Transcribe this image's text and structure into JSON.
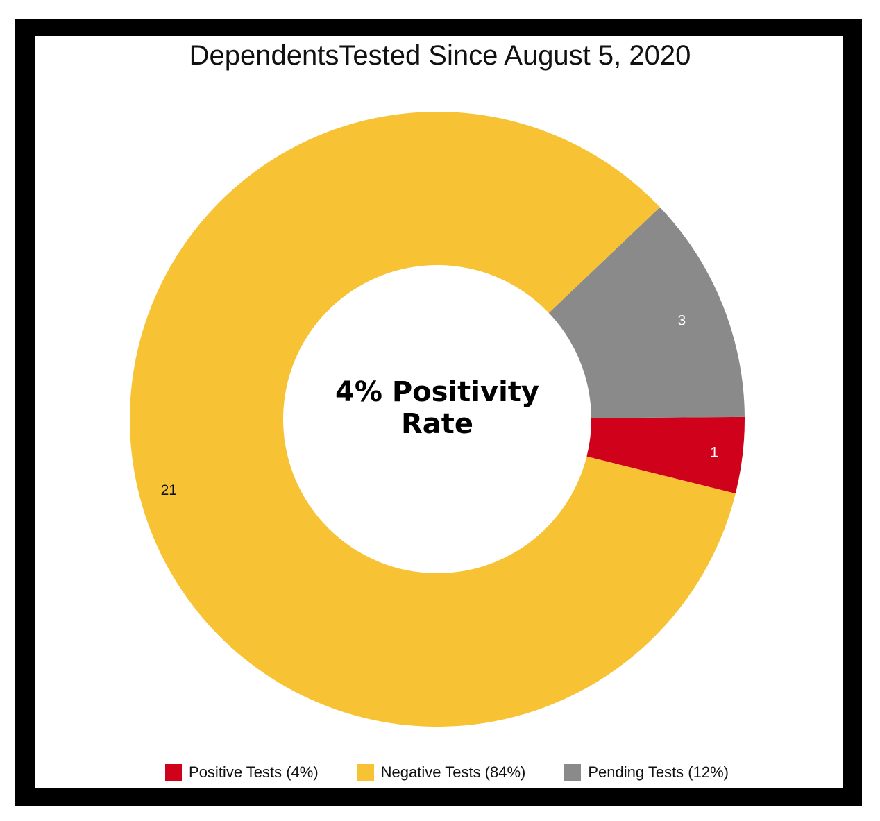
{
  "chart_data": {
    "type": "pie",
    "title": "DependentsTested Since August 5, 2020",
    "center_text": [
      "4% Positivity",
      "Rate"
    ],
    "slices": [
      {
        "name": "Positive Tests (4%)",
        "value": 1,
        "color": "#d0021b",
        "label": "1"
      },
      {
        "name": "Pending Tests (12%)",
        "value": 3,
        "color": "#8a8a8a",
        "label": "3"
      },
      {
        "name": "Negative Tests (84%)",
        "value": 21,
        "color": "#f8c235",
        "label": "21"
      }
    ],
    "legend": [
      {
        "label": "Positive Tests (4%)",
        "color": "#d0021b"
      },
      {
        "label": "Negative Tests (84%)",
        "color": "#f8c235"
      },
      {
        "label": "Pending Tests (12%)",
        "color": "#8a8a8a"
      }
    ],
    "legend_position": "bottom"
  }
}
